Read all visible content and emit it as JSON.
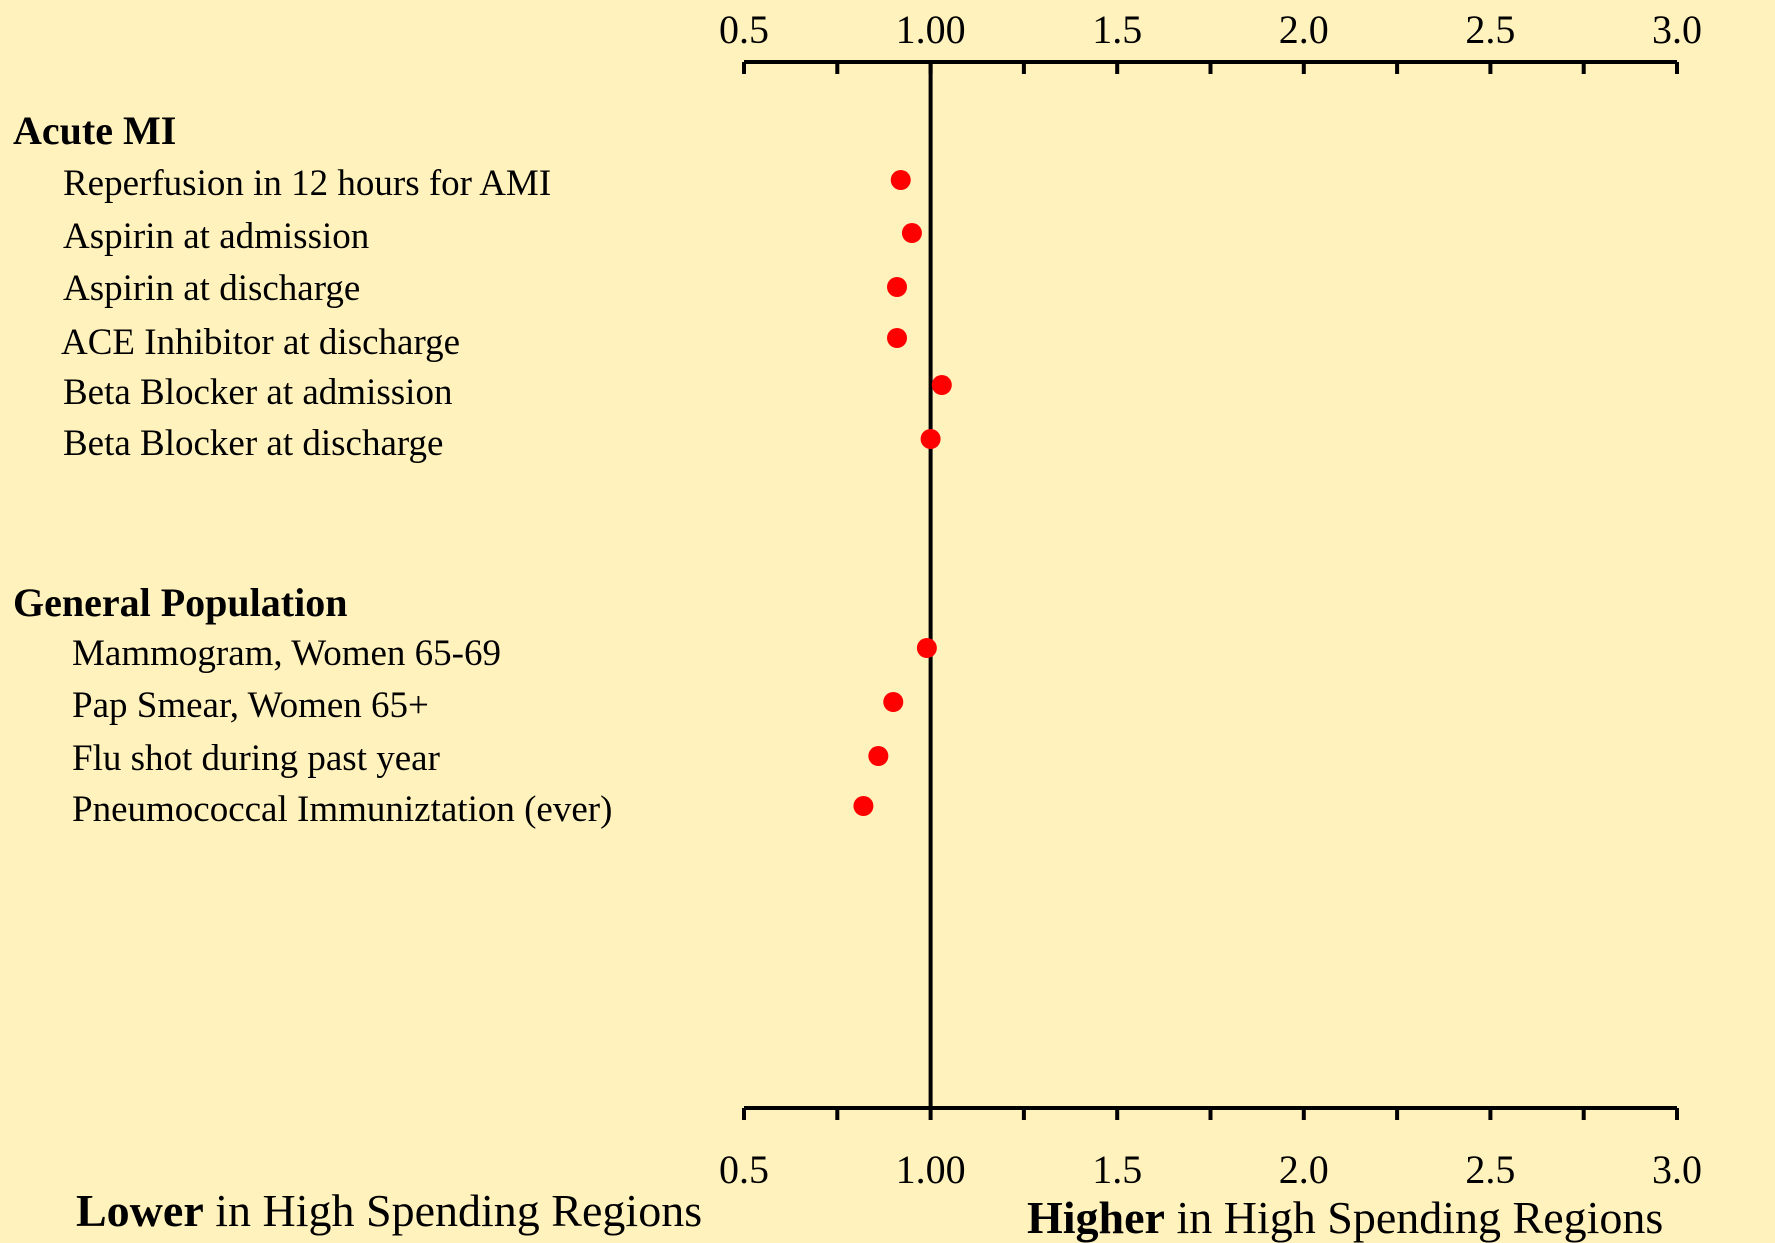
{
  "chart_data": {
    "type": "scatter",
    "xlim": [
      0.5,
      3.0
    ],
    "x_ticks": [
      "0.5",
      "1.00",
      "1.5",
      "2.0",
      "2.5",
      "3.0"
    ],
    "x_tick_values": [
      0.5,
      1.0,
      1.5,
      2.0,
      2.5,
      3.0
    ],
    "reference_line": 1.0,
    "groups": [
      {
        "name": "Acute MI",
        "items": [
          {
            "label": "Reperfusion in 12 hours for AMI",
            "value": 0.92
          },
          {
            "label": "Aspirin at admission",
            "value": 0.95
          },
          {
            "label": "Aspirin at discharge",
            "value": 0.91
          },
          {
            "label": "ACE Inhibitor at discharge",
            "value": 0.91
          },
          {
            "label": "Beta Blocker at admission",
            "value": 1.03
          },
          {
            "label": "Beta Blocker at discharge",
            "value": 1.0
          }
        ]
      },
      {
        "name": "General Population",
        "items": [
          {
            "label": "Mammogram, Women 65-69",
            "value": 0.99
          },
          {
            "label": "Pap Smear, Women 65+",
            "value": 0.9
          },
          {
            "label": "Flu shot during past year",
            "value": 0.86
          },
          {
            "label": "Pneumococcal Immuniztation (ever)",
            "value": 0.82
          }
        ]
      }
    ],
    "footer_left": {
      "bold": "Lower",
      "rest": " in High Spending Regions"
    },
    "footer_right": {
      "bold": "Higher",
      "rest": " in High Spending Regions"
    },
    "colors": {
      "background": "#FFF2BD",
      "point": "#FF0000",
      "axis": "#000000"
    }
  }
}
